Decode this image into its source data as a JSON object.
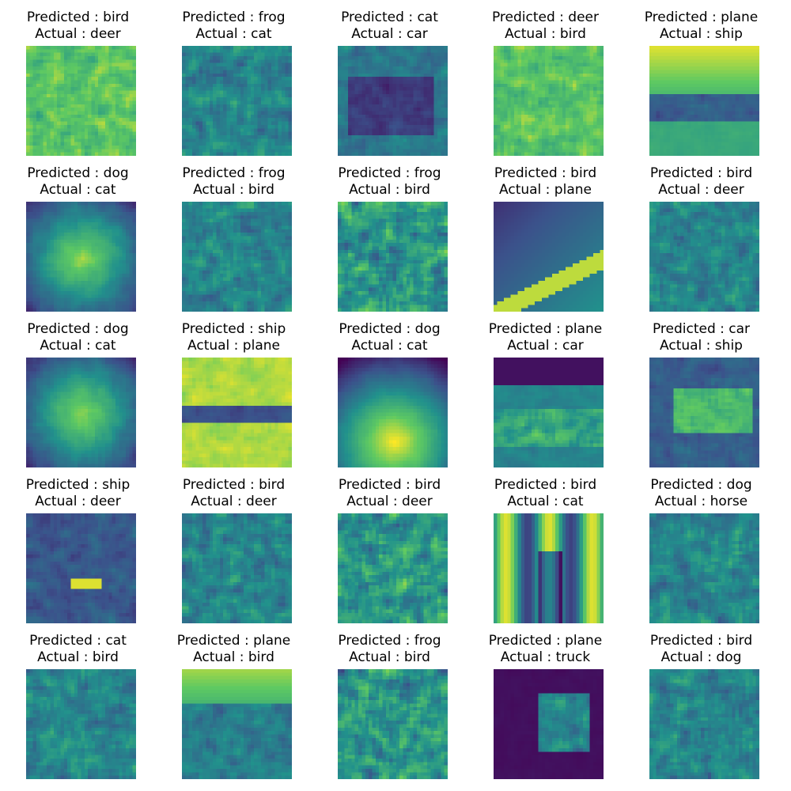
{
  "figure": {
    "predicted_prefix": "Predicted : ",
    "actual_prefix": "Actual : ",
    "colormap": [
      "#440154",
      "#3b528b",
      "#21918c",
      "#5ec962",
      "#fde725"
    ],
    "samples": [
      {
        "predicted": "bird",
        "actual": "deer",
        "caption_predicted": "Predicted : bird",
        "caption_actual": "Actual : deer",
        "scene": "texture-bright"
      },
      {
        "predicted": "frog",
        "actual": "cat",
        "caption_predicted": "Predicted : frog",
        "caption_actual": "Actual : cat",
        "scene": "texture-dark"
      },
      {
        "predicted": "cat",
        "actual": "car",
        "caption_predicted": "Predicted : cat",
        "caption_actual": "Actual : car",
        "scene": "car-dark"
      },
      {
        "predicted": "deer",
        "actual": "bird",
        "caption_predicted": "Predicted : deer",
        "caption_actual": "Actual : bird",
        "scene": "texture-bright"
      },
      {
        "predicted": "plane",
        "actual": "ship",
        "caption_predicted": "Predicted : plane",
        "caption_actual": "Actual : ship",
        "scene": "ship-horizon"
      },
      {
        "predicted": "dog",
        "actual": "cat",
        "caption_predicted": "Predicted : dog",
        "caption_actual": "Actual : cat",
        "scene": "animal-bright"
      },
      {
        "predicted": "frog",
        "actual": "bird",
        "caption_predicted": "Predicted : frog",
        "caption_actual": "Actual : bird",
        "scene": "texture-dark"
      },
      {
        "predicted": "frog",
        "actual": "bird",
        "caption_predicted": "Predicted : frog",
        "caption_actual": "Actual : bird",
        "scene": "texture-mixed"
      },
      {
        "predicted": "bird",
        "actual": "plane",
        "caption_predicted": "Predicted : bird",
        "caption_actual": "Actual : plane",
        "scene": "gradient-plane"
      },
      {
        "predicted": "bird",
        "actual": "deer",
        "caption_predicted": "Predicted : bird",
        "caption_actual": "Actual : deer",
        "scene": "texture-dark"
      },
      {
        "predicted": "dog",
        "actual": "cat",
        "caption_predicted": "Predicted : dog",
        "caption_actual": "Actual : cat",
        "scene": "animal-bright"
      },
      {
        "predicted": "ship",
        "actual": "plane",
        "caption_predicted": "Predicted : ship",
        "caption_actual": "Actual : plane",
        "scene": "plane-bright"
      },
      {
        "predicted": "dog",
        "actual": "cat",
        "caption_predicted": "Predicted : dog",
        "caption_actual": "Actual : cat",
        "scene": "animal-glow"
      },
      {
        "predicted": "plane",
        "actual": "car",
        "caption_predicted": "Predicted : plane",
        "caption_actual": "Actual : car",
        "scene": "car-road"
      },
      {
        "predicted": "car",
        "actual": "ship",
        "caption_predicted": "Predicted : car",
        "caption_actual": "Actual : ship",
        "scene": "ship-boat"
      },
      {
        "predicted": "ship",
        "actual": "deer",
        "caption_predicted": "Predicted : ship",
        "caption_actual": "Actual : deer",
        "scene": "deer-dark"
      },
      {
        "predicted": "bird",
        "actual": "deer",
        "caption_predicted": "Predicted : bird",
        "caption_actual": "Actual : deer",
        "scene": "texture-dark"
      },
      {
        "predicted": "bird",
        "actual": "deer",
        "caption_predicted": "Predicted : bird",
        "caption_actual": "Actual : deer",
        "scene": "texture-mixed"
      },
      {
        "predicted": "bird",
        "actual": "cat",
        "caption_predicted": "Predicted : bird",
        "caption_actual": "Actual : cat",
        "scene": "curtain"
      },
      {
        "predicted": "dog",
        "actual": "horse",
        "caption_predicted": "Predicted : dog",
        "caption_actual": "Actual : horse",
        "scene": "texture-dark"
      },
      {
        "predicted": "cat",
        "actual": "bird",
        "caption_predicted": "Predicted : cat",
        "caption_actual": "Actual : bird",
        "scene": "texture-dark"
      },
      {
        "predicted": "plane",
        "actual": "bird",
        "caption_predicted": "Predicted : plane",
        "caption_actual": "Actual : bird",
        "scene": "field-horizon"
      },
      {
        "predicted": "frog",
        "actual": "bird",
        "caption_predicted": "Predicted : frog",
        "caption_actual": "Actual : bird",
        "scene": "texture-mixed"
      },
      {
        "predicted": "plane",
        "actual": "truck",
        "caption_predicted": "Predicted : plane",
        "caption_actual": "Actual : truck",
        "scene": "truck-dark"
      },
      {
        "predicted": "bird",
        "actual": "dog",
        "caption_predicted": "Predicted : bird",
        "caption_actual": "Actual : dog",
        "scene": "texture-dark"
      }
    ]
  }
}
